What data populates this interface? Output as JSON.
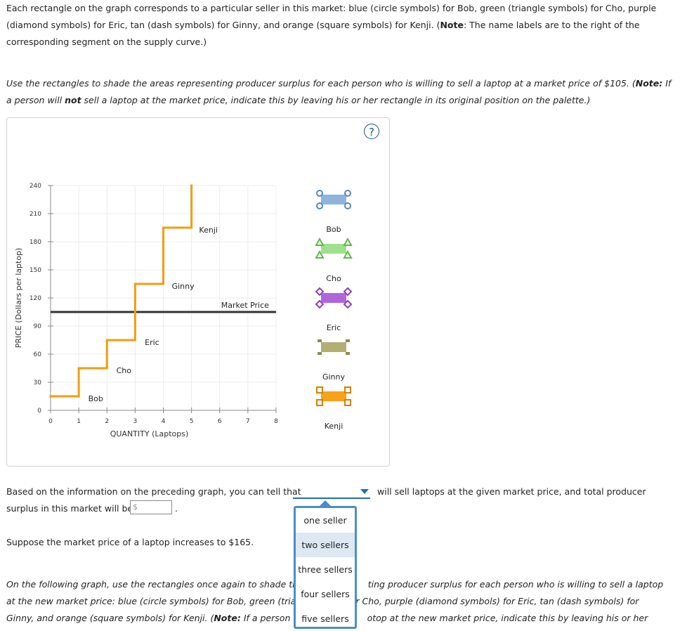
{
  "intro": {
    "seg1": "Each rectangle on the graph corresponds to a particular seller in this market: blue (circle symbols) for Bob, green (triangle symbols) for Cho, purple (diamond symbols) for Eric, tan (dash symbols) for Ginny, and orange (square symbols) for Kenji. (",
    "note_label": "Note",
    "seg2": ": The name labels are to the right of the corresponding segment on the supply curve.)"
  },
  "instruction": {
    "seg1": "Use the rectangles to shade the areas representing producer surplus for each person who is willing to sell a laptop at a market price of $105. (",
    "note_label": "Note:",
    "seg2": " If a person will ",
    "not_word": "not",
    "seg3": " sell a laptop at the market price, indicate this by leaving his or her rectangle in its original position on the palette.)"
  },
  "help_symbol": "?",
  "chart_data": {
    "type": "line",
    "xlabel": "QUANTITY (Laptops)",
    "ylabel": "PRICE (Dollars per laptop)",
    "xlim": [
      0,
      8
    ],
    "ylim": [
      0,
      240
    ],
    "x_ticks": [
      "0",
      "1",
      "2",
      "3",
      "4",
      "5",
      "6",
      "7",
      "8"
    ],
    "y_ticks": [
      "0",
      "30",
      "60",
      "90",
      "120",
      "150",
      "180",
      "210",
      "240"
    ],
    "grid": true,
    "supply_steps": [
      {
        "name": "Bob",
        "x_start": 0,
        "x_end": 1,
        "price": 15
      },
      {
        "name": "Cho",
        "x_start": 1,
        "x_end": 2,
        "price": 45
      },
      {
        "name": "Eric",
        "x_start": 2,
        "x_end": 3,
        "price": 75
      },
      {
        "name": "Ginny",
        "x_start": 3,
        "x_end": 4,
        "price": 135
      },
      {
        "name": "Kenji",
        "x_start": 4,
        "x_end": 5,
        "price": 195
      }
    ],
    "supply_top": 240,
    "segment_labels": [
      {
        "text": "Bob",
        "x": 1.6,
        "y": 15
      },
      {
        "text": "Cho",
        "x": 2.6,
        "y": 45
      },
      {
        "text": "Eric",
        "x": 3.6,
        "y": 75
      },
      {
        "text": "Ginny",
        "x": 4.7,
        "y": 135
      },
      {
        "text": "Kenji",
        "x": 5.6,
        "y": 195
      }
    ],
    "market_price": {
      "label": "Market Price",
      "value": 105
    },
    "supply_color": "#f39c12",
    "market_price_color": "#333333"
  },
  "palette": [
    {
      "name": "Bob",
      "color": "#8fb4dc",
      "symbol": "circle",
      "border": "#5a85b8"
    },
    {
      "name": "Cho",
      "color": "#9fe08a",
      "symbol": "triangle",
      "border": "#5cb84a"
    },
    {
      "name": "Eric",
      "color": "#b065d8",
      "symbol": "diamond",
      "border": "#8a3fb8"
    },
    {
      "name": "Ginny",
      "color": "#b3ae72",
      "symbol": "dash",
      "border": "#8f8a50"
    },
    {
      "name": "Kenji",
      "color": "#f7a21a",
      "symbol": "square",
      "border": "#d47f00"
    }
  ],
  "question1": {
    "before_dropdown": "Based on the information on the preceding graph, you can tell that",
    "after_dropdown": "will sell laptops at the given market price, and total producer",
    "line2": "surplus in this market will be",
    "input_prefix": "$",
    "period": "."
  },
  "dropdown": {
    "selected": "",
    "options": [
      "one seller",
      "two sellers",
      "three sellers",
      "four sellers",
      "five sellers"
    ],
    "hovered_index": 1
  },
  "question2": "Suppose the market price of a laptop increases to $165.",
  "instruction2": {
    "line1a": "On the following graph, use the rectangles once again to shade the",
    "line1b": "ting producer surplus for each person who is willing to sell a laptop",
    "line2a": "at the new market price: blue (circle symbols) for Bob, green (trian",
    "line2b": "r Cho, purple (diamond symbols) for Eric, tan (dash symbols) for",
    "line3a": "Ginny, and orange (square symbols) for Kenji. (",
    "note_label": "Note:",
    "line3b": " If a person w",
    "line3c": "otop at the new market price, indicate this by leaving his or her"
  }
}
